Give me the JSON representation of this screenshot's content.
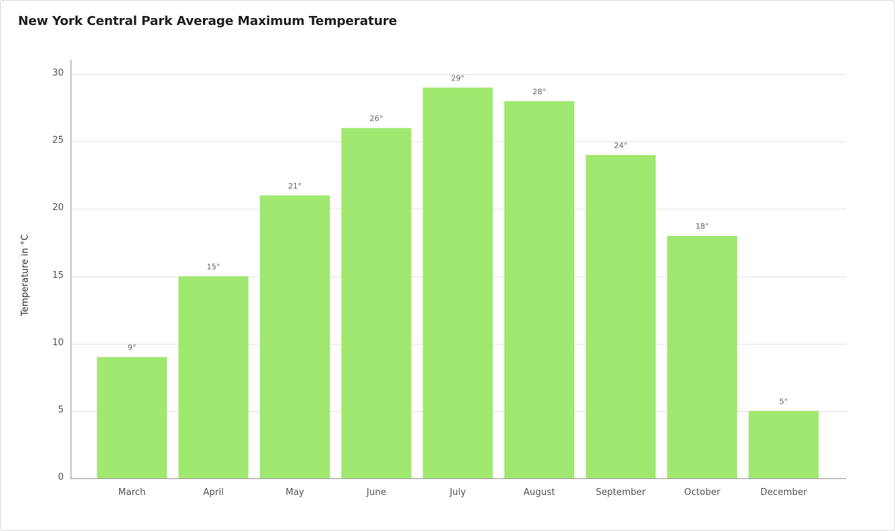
{
  "chart_data": {
    "type": "bar",
    "title": "New York Central Park Average Maximum Temperature",
    "ylabel": "Temperature in °C",
    "xlabel": "",
    "categories": [
      "March",
      "April",
      "May",
      "June",
      "July",
      "August",
      "September",
      "October",
      "December"
    ],
    "values": [
      9,
      15,
      21,
      26,
      29,
      28,
      24,
      18,
      5
    ],
    "data_labels": [
      "9°",
      "15°",
      "21°",
      "26°",
      "29°",
      "28°",
      "24°",
      "18°",
      "5°"
    ],
    "ylim": [
      0,
      30
    ],
    "yticks": [
      "0",
      "5",
      "10",
      "15",
      "20",
      "25",
      "30"
    ],
    "grid": true,
    "bar_color": "#a0e870"
  }
}
